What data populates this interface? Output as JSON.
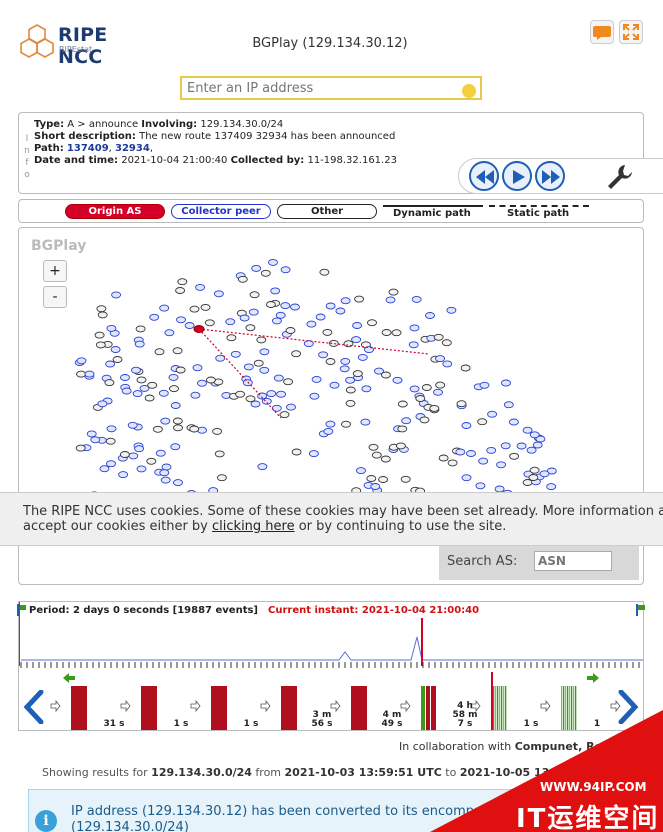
{
  "header": {
    "logo_text": "RIPE NCC",
    "logo_sub": "RIPEstat",
    "title": "BGPlay (129.134.30.12)",
    "ip_placeholder": "Enter an IP address"
  },
  "info": {
    "side_letters": [
      "I",
      "n",
      "f",
      "o"
    ],
    "type_label": "Type:",
    "type_value": "A > announce",
    "involving_label": "Involving:",
    "involving_value": "129.134.30.0/24",
    "short_desc_label": "Short description:",
    "short_desc_value": "The new route 137409 32934 has been announced",
    "path_label": "Path:",
    "path_as1": "137409",
    "path_as2": "32934",
    "datetime_label": "Date and time:",
    "datetime_value": "2021-10-04 21:00:40",
    "collected_label": "Collected by:",
    "collected_value": "11-198.32.161.23"
  },
  "legend": {
    "origin": "Origin AS",
    "collector": "Collector peer",
    "other": "Other",
    "dynamic": "Dynamic path",
    "static": "Static path"
  },
  "graph": {
    "watermark": "BGPlay",
    "zoom_in": "+",
    "zoom_out": "-",
    "search_label": "Search AS:",
    "search_placeholder": "ASN"
  },
  "cookie": {
    "line1": "The RIPE NCC uses cookies. Some of these cookies may have been set already. More information about our cookies can be found in our privacy statement. You can",
    "line2_pre": "accept our cookies either by ",
    "link": "clicking here",
    "line2_post": " or by continuing to use the site."
  },
  "timeline": {
    "period": "Period: 2 days 0 seconds [19887 events]",
    "current": "Current instant: 2021-10-04 21:00:40",
    "intervals": [
      {
        "lines": [
          "31 s"
        ]
      },
      {
        "lines": [
          "1 s"
        ]
      },
      {
        "lines": [
          "1 s"
        ]
      },
      {
        "lines": [
          "3 m",
          "56 s"
        ]
      },
      {
        "lines": [
          "4 m",
          "49 s"
        ]
      },
      {
        "lines": [
          "4 h",
          "58 m",
          "7 s"
        ]
      },
      {
        "lines": [
          "1 s"
        ]
      },
      {
        "lines": [
          "1"
        ]
      }
    ]
  },
  "footer": {
    "collab_pre": "In collaboration with ",
    "collab_strong": "Compunet, Roma",
    "results_pre": "Showing results for ",
    "results_resource": "129.134.30.0/24",
    "results_from": " from ",
    "results_start": "2021-10-03 13:59:51 UTC",
    "results_to": " to ",
    "results_end": "2021-10-05 13:59:51 UTC",
    "alert_line1": "IP address (129.134.30.12) has been converted to its encompassi",
    "alert_line2": "(129.134.30.0/24)"
  },
  "watermark": {
    "site": "WWW.94IP.COM",
    "brand": "IT运维空间"
  },
  "colors": {
    "origin": "#d4002a",
    "collector": "#2233cc",
    "accent": "#1f5fb4",
    "event_bar": "#b0101e",
    "event_green": "#3a9a1a"
  }
}
